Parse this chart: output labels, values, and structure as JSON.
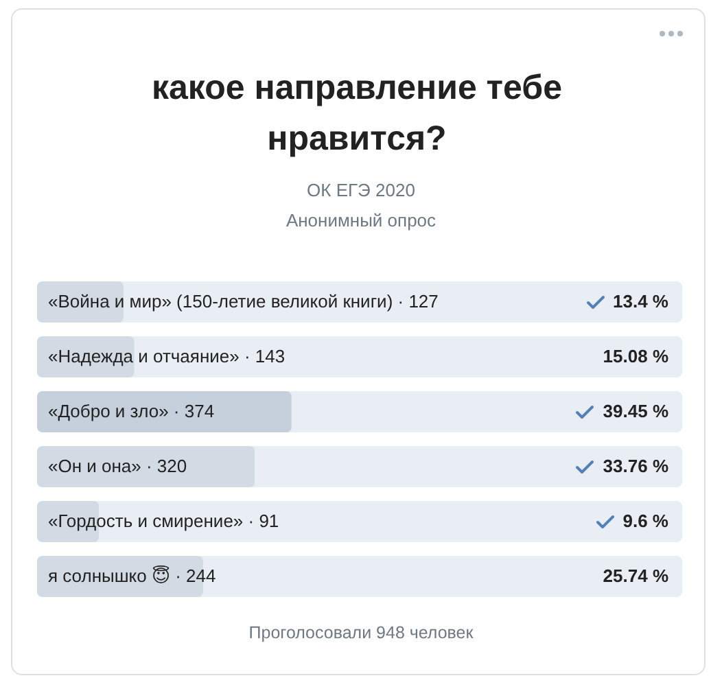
{
  "chart_data": {
    "type": "bar",
    "orientation": "horizontal",
    "title": "какое направление тебе нравится?",
    "subtitle": "ОК ЕГЭ 2020",
    "annotations": [
      "Анонимный опрос",
      "Проголосовали 948 человек"
    ],
    "categories": [
      "«Война и мир» (150-летие великой книги) · 127",
      "«Надежда и отчаяние» · 143",
      "«Добро и зло» · 374",
      "«Он и она» · 320",
      "«Гордость и смирение» · 91",
      "я солнышко 😇 · 244"
    ],
    "values": [
      13.4,
      15.08,
      39.45,
      33.76,
      9.6,
      25.74
    ],
    "value_labels": [
      "13.4 %",
      "15.08 %",
      "39.45 %",
      "33.76 %",
      "9.6 %",
      "25.74 %"
    ],
    "colors": [
      "#d2dae4",
      "#d2dae4",
      "#c5d0dc",
      "#d2dae4",
      "#d2dae4",
      "#d2dae4"
    ],
    "xlim": [
      0,
      100
    ],
    "tick_labels": false
  }
}
